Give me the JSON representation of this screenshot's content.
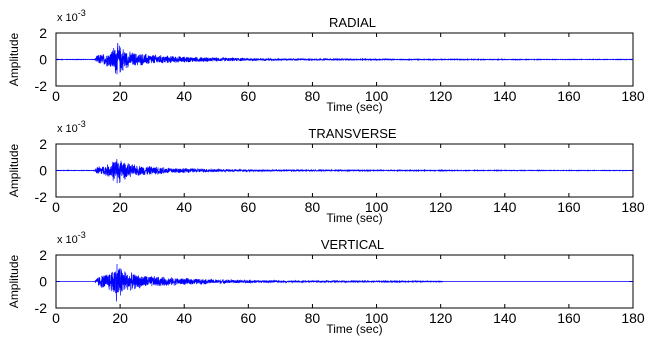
{
  "chart_data": [
    {
      "type": "line",
      "title": "RADIAL",
      "xlabel": "Time (sec)",
      "ylabel": "Amplitude",
      "multiplier_base": "x 10",
      "multiplier_exp": "-3",
      "xlim": [
        0,
        180
      ],
      "ylim": [
        -2,
        2
      ],
      "xticks": [
        0,
        20,
        40,
        60,
        80,
        100,
        120,
        140,
        160,
        180
      ],
      "yticks": [
        -2,
        0,
        2
      ],
      "series": [
        {
          "color": "#0000ff",
          "envelope": {
            "time": [
              0,
              12,
              13,
              15,
              17,
              18,
              19,
              20,
              21,
              22,
              25,
              30,
              35,
              40,
              50,
              60,
              70,
              80,
              100,
              120,
              140,
              160,
              180
            ],
            "amplitude": [
              0.02,
              0.02,
              0.4,
              0.5,
              0.7,
              1.1,
              1.4,
              1.2,
              1.0,
              0.7,
              0.55,
              0.42,
              0.32,
              0.25,
              0.17,
              0.12,
              0.08,
              0.06,
              0.04,
              0.03,
              0.03,
              0.02,
              0.02
            ]
          }
        }
      ]
    },
    {
      "type": "line",
      "title": "TRANSVERSE",
      "xlabel": "Time (sec)",
      "ylabel": "Amplitude",
      "multiplier_base": "x 10",
      "multiplier_exp": "-3",
      "xlim": [
        0,
        180
      ],
      "ylim": [
        -2,
        2
      ],
      "xticks": [
        0,
        20,
        40,
        60,
        80,
        100,
        120,
        140,
        160,
        180
      ],
      "yticks": [
        -2,
        0,
        2
      ],
      "series": [
        {
          "color": "#0000ff",
          "envelope": {
            "time": [
              0,
              12,
              13,
              15,
              17,
              18,
              19,
              20,
              21,
              22,
              25,
              30,
              35,
              40,
              50,
              60,
              70,
              80,
              100,
              120,
              140,
              160,
              180
            ],
            "amplitude": [
              0.02,
              0.02,
              0.35,
              0.4,
              0.6,
              0.9,
              1.1,
              1.0,
              0.85,
              0.6,
              0.45,
              0.35,
              0.27,
              0.2,
              0.13,
              0.09,
              0.07,
              0.05,
              0.035,
              0.03,
              0.025,
              0.02,
              0.02
            ]
          }
        }
      ]
    },
    {
      "type": "line",
      "title": "VERTICAL",
      "xlabel": "Time (sec)",
      "ylabel": "Amplitude",
      "multiplier_base": "x 10",
      "multiplier_exp": "-3",
      "xlim": [
        0,
        180
      ],
      "ylim": [
        -2,
        2
      ],
      "xticks": [
        0,
        20,
        40,
        60,
        80,
        100,
        120,
        140,
        160,
        180
      ],
      "yticks": [
        -2,
        0,
        2
      ],
      "series": [
        {
          "color": "#0000ff",
          "envelope": {
            "time": [
              0,
              12,
              13,
              15,
              17,
              18,
              19,
              20,
              21,
              22,
              25,
              30,
              35,
              40,
              50,
              60,
              70,
              80,
              100,
              120,
              121,
              180
            ],
            "amplitude": [
              0.0,
              0.0,
              0.4,
              0.6,
              0.8,
              1.2,
              1.7,
              1.4,
              1.1,
              0.8,
              0.6,
              0.45,
              0.35,
              0.28,
              0.18,
              0.13,
              0.09,
              0.07,
              0.05,
              0.04,
              0.0,
              0.0
            ]
          }
        }
      ]
    }
  ]
}
